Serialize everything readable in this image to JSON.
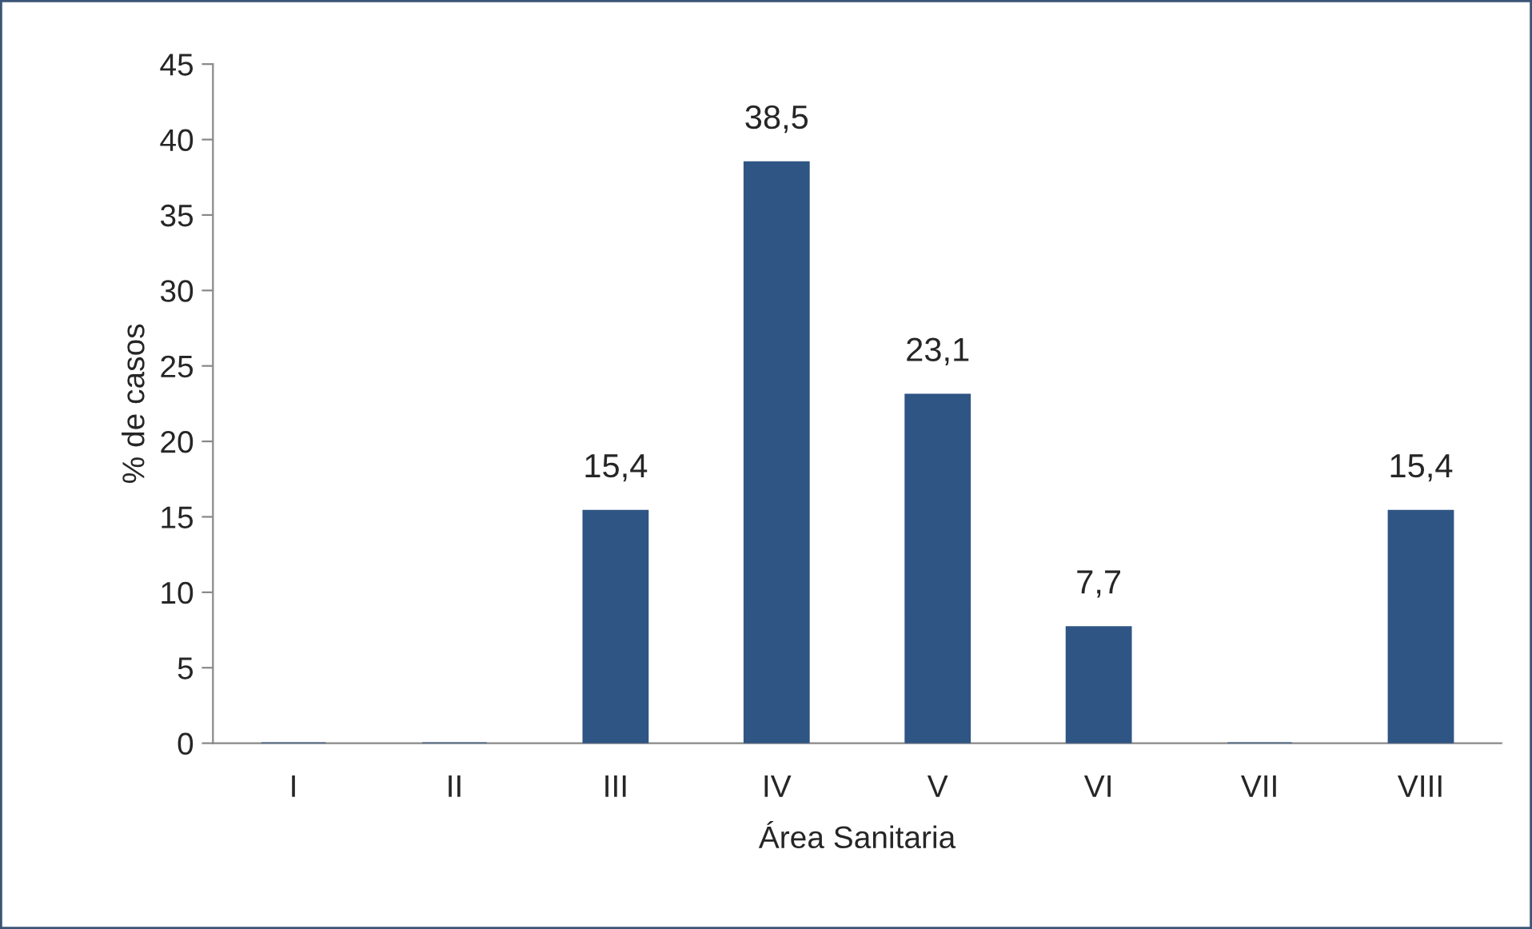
{
  "chart_data": {
    "type": "bar",
    "xlabel": "Área Sanitaria",
    "ylabel": "% de casos",
    "categories": [
      "I",
      "II",
      "III",
      "IV",
      "V",
      "VI",
      "VII",
      "VIII"
    ],
    "values": [
      0,
      0,
      15.4,
      38.5,
      23.1,
      7.7,
      0,
      15.4
    ],
    "value_labels": [
      null,
      null,
      "15,4",
      "38,5",
      "23,1",
      "7,7",
      null,
      "15,4"
    ],
    "color": "#2f5584",
    "ylim": [
      0,
      45
    ],
    "yticks": [
      0,
      5,
      10,
      15,
      20,
      25,
      30,
      35,
      40,
      45
    ],
    "grid": false,
    "legend": false
  }
}
